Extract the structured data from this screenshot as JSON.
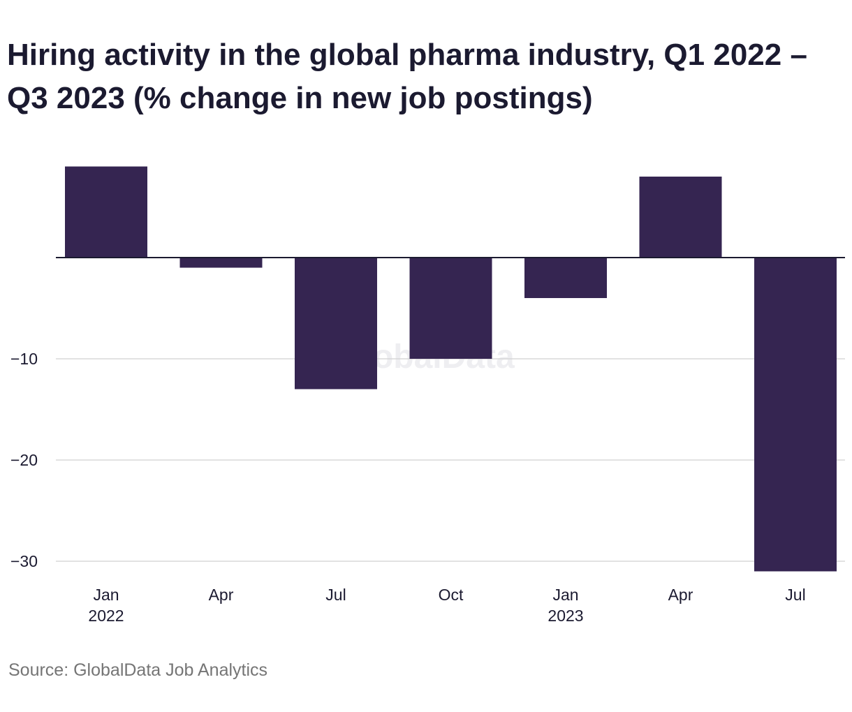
{
  "title": "Hiring activity in the global pharma industry, Q1 2022 – Q3 2023 (% change in new job postings)",
  "source": "Source: GlobalData Job Analytics",
  "watermark": "GlobalData",
  "colors": {
    "bar": "#352551",
    "grid": "#d9d9d9",
    "zero_line": "#1b1a30",
    "text": "#1b1a30",
    "source_text": "#757575"
  },
  "chart_data": {
    "type": "bar",
    "title": "Hiring activity in the global pharma industry, Q1 2022 – Q3 2023 (% change in new job postings)",
    "xlabel": "",
    "ylabel": "",
    "categories": [
      "Jan 2022",
      "Apr 2022",
      "Jul 2022",
      "Oct 2022",
      "Jan 2023",
      "Apr 2023",
      "Jul 2023"
    ],
    "x_tick_labels": [
      {
        "line1": "Jan",
        "line2": "2022"
      },
      {
        "line1": "Apr",
        "line2": ""
      },
      {
        "line1": "Jul",
        "line2": ""
      },
      {
        "line1": "Oct",
        "line2": ""
      },
      {
        "line1": "Jan",
        "line2": "2023"
      },
      {
        "line1": "Apr",
        "line2": ""
      },
      {
        "line1": "Jul",
        "line2": ""
      }
    ],
    "values": [
      9,
      -1,
      -13,
      -10,
      -4,
      8,
      -31
    ],
    "y_ticks": [
      -10,
      -20,
      -30
    ],
    "y_tick_labels": [
      "−10",
      "−20",
      "−30"
    ],
    "ylim": [
      -31.5,
      9.5
    ],
    "grid": true,
    "legend": "none"
  }
}
